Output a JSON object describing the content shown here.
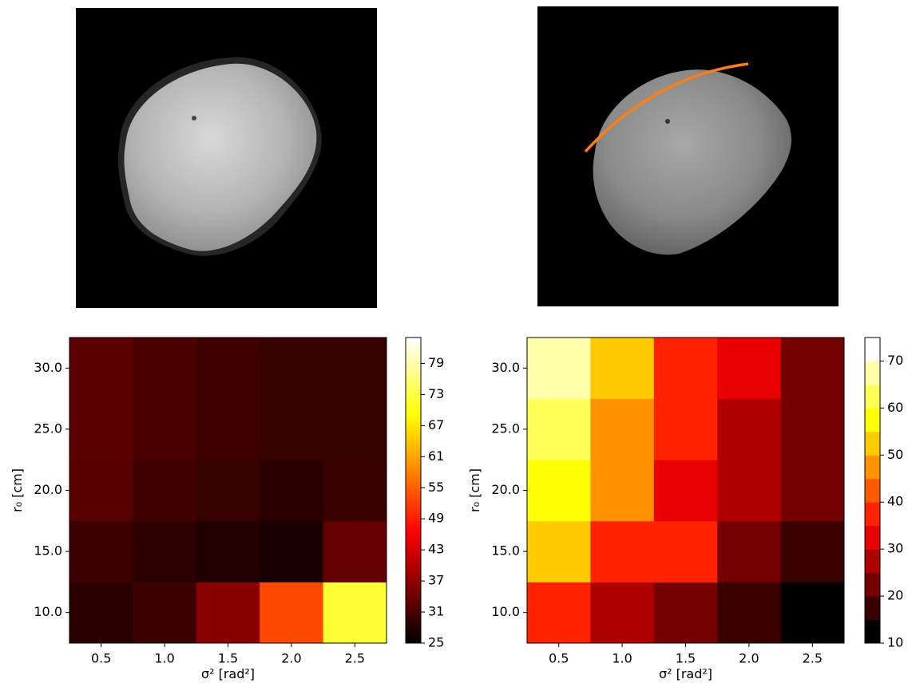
{
  "chart_data": [
    {
      "type": "heatmap",
      "colormap": "hot",
      "x": [
        0.5,
        1.0,
        1.5,
        2.0,
        2.5
      ],
      "y": [
        10,
        15,
        20,
        25,
        30
      ],
      "values": [
        [
          28.5,
          30.0,
          36.5,
          53,
          72
        ],
        [
          30.0,
          28.7,
          27.8,
          27.0,
          33.5
        ],
        [
          32.3,
          30.5,
          29.5,
          28.5,
          29.7
        ],
        [
          32.7,
          31.3,
          30.3,
          29.5,
          29.5
        ],
        [
          32.7,
          31.3,
          30.3,
          29.5,
          29.5
        ]
      ],
      "xlim": [
        0.25,
        2.75
      ],
      "ylim": [
        7.5,
        32.5
      ],
      "xticks": [
        {
          "value": 0.5,
          "label": "0.5"
        },
        {
          "value": 1,
          "label": "1.0"
        },
        {
          "value": 1.5,
          "label": "1.5"
        },
        {
          "value": 2,
          "label": "2.0"
        },
        {
          "value": 2.5,
          "label": "2.5"
        }
      ],
      "yticks": [
        {
          "value": 10,
          "label": "10.0"
        },
        {
          "value": 15,
          "label": "15.0"
        },
        {
          "value": 20,
          "label": "20.0"
        },
        {
          "value": 25,
          "label": "25.0"
        },
        {
          "value": 30,
          "label": "30.0"
        }
      ],
      "xlabel": "σ² [rad²]",
      "ylabel": "r₀ [cm]",
      "clim": [
        25,
        84
      ],
      "cbar_ticks": [
        25,
        31,
        37,
        43,
        49,
        55,
        61,
        67,
        73,
        79
      ]
    },
    {
      "type": "heatmap",
      "colormap": "hot",
      "discrete_levels": 13,
      "x": [
        0.5,
        1.0,
        1.5,
        2.0,
        2.5
      ],
      "y": [
        10,
        15,
        20,
        25,
        30
      ],
      "values": [
        [
          37,
          27,
          22,
          17,
          12
        ],
        [
          52,
          37,
          37,
          22,
          17
        ],
        [
          57,
          47,
          32,
          27,
          22
        ],
        [
          62,
          47,
          37,
          27,
          22
        ],
        [
          67,
          52,
          37,
          32,
          22
        ]
      ],
      "xlim": [
        0.25,
        2.75
      ],
      "ylim": [
        7.5,
        32.5
      ],
      "xticks": [
        {
          "value": 0.5,
          "label": "0.5"
        },
        {
          "value": 1,
          "label": "1.0"
        },
        {
          "value": 1.5,
          "label": "1.5"
        },
        {
          "value": 2,
          "label": "2.0"
        },
        {
          "value": 2.5,
          "label": "2.5"
        }
      ],
      "yticks": [
        {
          "value": 10,
          "label": "10.0"
        },
        {
          "value": 15,
          "label": "15.0"
        },
        {
          "value": 20,
          "label": "20.0"
        },
        {
          "value": 25,
          "label": "25.0"
        },
        {
          "value": 30,
          "label": "30.0"
        }
      ],
      "xlabel": "σ² [rad²]",
      "ylabel": "r₀ [cm]",
      "clim": [
        10,
        75
      ],
      "cbar_ticks": [
        10,
        20,
        30,
        40,
        50,
        60,
        70
      ]
    }
  ]
}
